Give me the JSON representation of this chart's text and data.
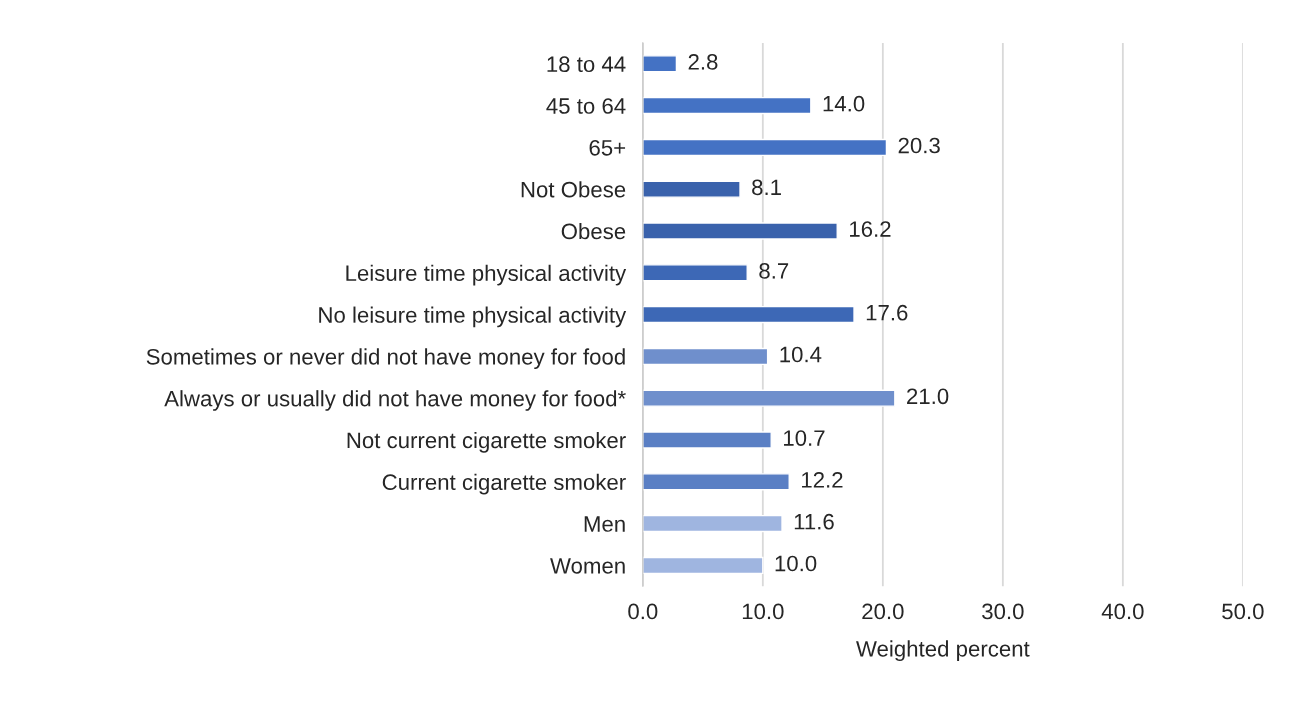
{
  "chart_data": {
    "type": "bar",
    "orientation": "horizontal",
    "xlabel": "Weighted percent",
    "categories": [
      "18 to 44",
      "45 to 64",
      "65+",
      "Not Obese",
      "Obese",
      "Leisure time physical activity",
      "No leisure time physical activity",
      "Sometimes or never did not have money for food",
      "Always or usually did not have money for food*",
      "Not current cigarette smoker",
      "Current cigarette smoker",
      "Men",
      "Women"
    ],
    "values": [
      2.8,
      14.0,
      20.3,
      8.1,
      16.2,
      8.7,
      17.6,
      10.4,
      21.0,
      10.7,
      12.2,
      11.6,
      10.0
    ],
    "value_labels": [
      "2.8",
      "14.0",
      "20.3",
      "8.1",
      "16.2",
      "8.7",
      "17.6",
      "10.4",
      "21.0",
      "10.7",
      "12.2",
      "11.6",
      "10.0"
    ],
    "colors": [
      "#4472c4",
      "#4472c4",
      "#4472c4",
      "#3a62ac",
      "#3a62ac",
      "#3d68b6",
      "#3d68b6",
      "#6f8fcc",
      "#6f8fcc",
      "#5a7fc4",
      "#5a7fc4",
      "#9fb5e0",
      "#9fb5e0"
    ],
    "xlim": [
      0,
      50
    ],
    "xticks": [
      {
        "value": 0,
        "label": "0.0"
      },
      {
        "value": 10,
        "label": "10.0"
      },
      {
        "value": 20,
        "label": "20.0"
      },
      {
        "value": 30,
        "label": "30.0"
      },
      {
        "value": 40,
        "label": "40.0"
      },
      {
        "value": 50,
        "label": "50.0"
      }
    ],
    "grid": "x",
    "legend": false
  }
}
